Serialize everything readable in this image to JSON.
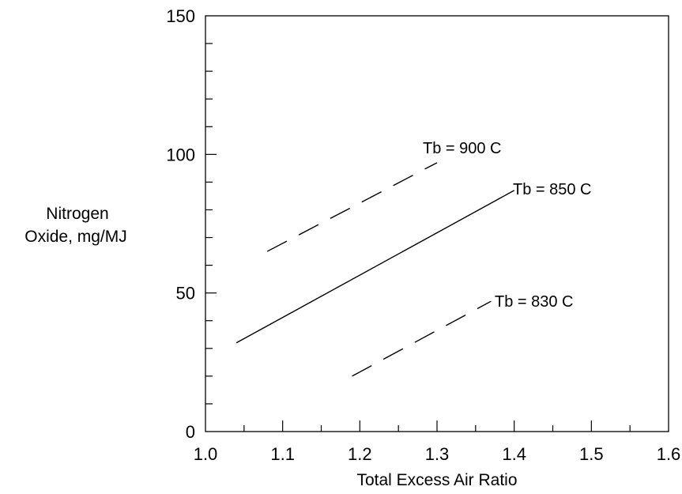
{
  "chart_data": {
    "type": "line",
    "title": "",
    "xlabel": "Total Excess Air Ratio",
    "ylabel": [
      "Nitrogen",
      "Oxide, mg/MJ"
    ],
    "xlim": [
      1.0,
      1.6
    ],
    "ylim": [
      0,
      150
    ],
    "x_ticks": [
      "1.0",
      "1.1",
      "1.2",
      "1.3",
      "1.4",
      "1.5",
      "1.6"
    ],
    "y_ticks": [
      "0",
      "50",
      "100",
      "150"
    ],
    "x_minor_step": 0.05,
    "y_minor_step": 10,
    "grid": false,
    "legend": "none",
    "series": [
      {
        "name": "Tb = 900 C",
        "style": "dashed",
        "x": [
          1.08,
          1.3
        ],
        "y": [
          65,
          97
        ]
      },
      {
        "name": "Tb = 850 C",
        "style": "solid",
        "x": [
          1.04,
          1.4
        ],
        "y": [
          32,
          87
        ]
      },
      {
        "name": "Tb = 830 C",
        "style": "dashed",
        "x": [
          1.19,
          1.37
        ],
        "y": [
          20,
          47
        ]
      }
    ],
    "line_color": "#000000"
  }
}
